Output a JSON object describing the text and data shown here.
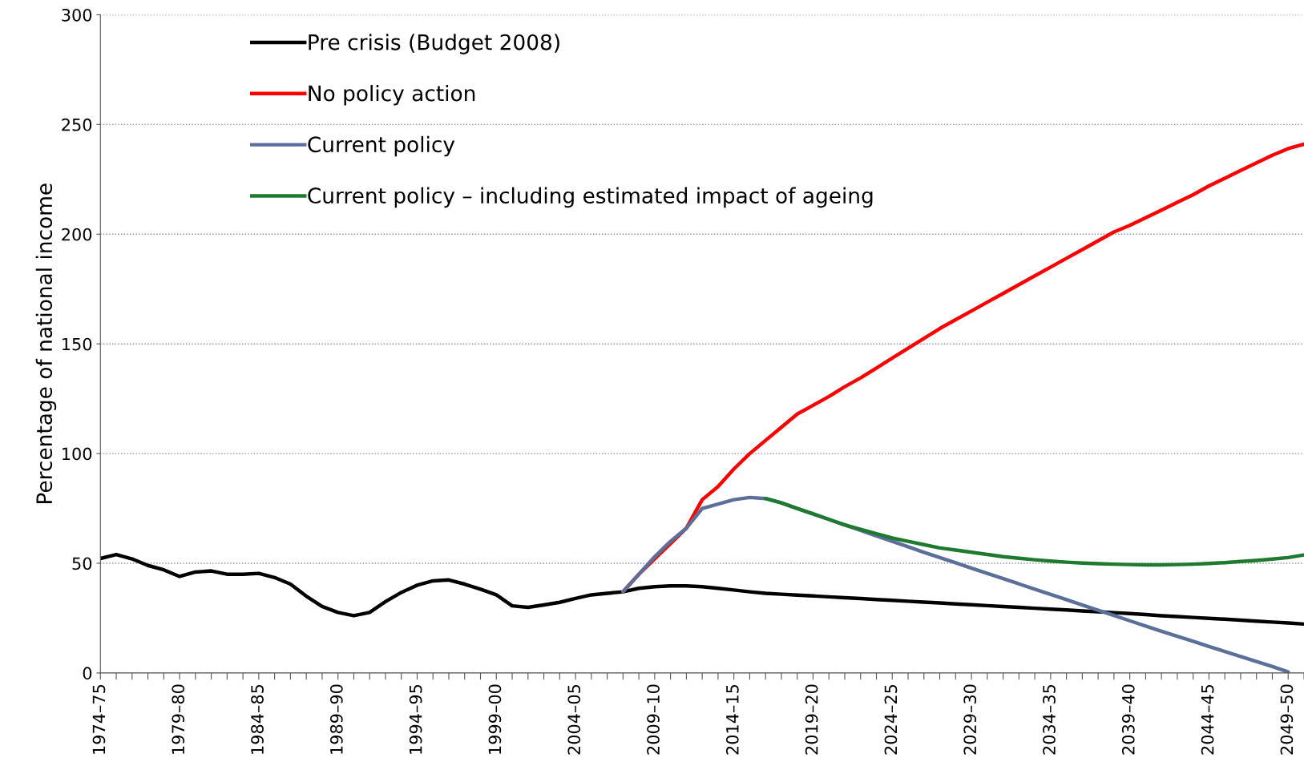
{
  "chart_data": {
    "type": "line",
    "ylabel": "Percentage of national income",
    "categories": [
      "1974–75",
      null,
      null,
      null,
      null,
      "1979–80",
      null,
      null,
      null,
      null,
      "1984–85",
      null,
      null,
      null,
      null,
      "1989–90",
      null,
      null,
      null,
      null,
      "1994–95",
      null,
      null,
      null,
      null,
      "1999–00",
      null,
      null,
      null,
      null,
      "2004–05",
      null,
      null,
      null,
      null,
      "2009–10",
      null,
      null,
      null,
      null,
      "2014–15",
      null,
      null,
      null,
      null,
      "2019–20",
      null,
      null,
      null,
      null,
      "2024–25",
      null,
      null,
      null,
      null,
      "2029–30",
      null,
      null,
      null,
      null,
      "2034–35",
      null,
      null,
      null,
      null,
      "2039–40",
      null,
      null,
      null,
      null,
      "2044–45",
      null,
      null,
      null,
      null,
      "2049–50",
      null
    ],
    "series": [
      {
        "name": "Pre crisis (Budget 2008)",
        "color": "#000000",
        "values": [
          52.2,
          54,
          52,
          49,
          47,
          44,
          46,
          46.5,
          45,
          45,
          45.4,
          43.5,
          40.5,
          35,
          30.3,
          27.6,
          26.1,
          27.6,
          32.5,
          36.7,
          40,
          42,
          42.4,
          40.5,
          38.2,
          35.6,
          30.6,
          29.9,
          31,
          32.2,
          34,
          35.6,
          36.3,
          37,
          38.6,
          39.3,
          39.7,
          39.7,
          39.3,
          38.6,
          37.8,
          37,
          36.3,
          35.9,
          35.5,
          35.1,
          34.7,
          34.3,
          33.9,
          33.5,
          33.1,
          32.7,
          32.3,
          31.9,
          31.5,
          31.1,
          30.7,
          30.3,
          29.9,
          29.5,
          29.1,
          28.7,
          28.3,
          27.9,
          27.5,
          27.1,
          26.6,
          26.1,
          25.7,
          25.3,
          24.9,
          24.5,
          24.1,
          23.6,
          23.2,
          22.8,
          22.3
        ]
      },
      {
        "name": "No policy action",
        "color": "#ff0000",
        "values": [
          null,
          null,
          null,
          null,
          null,
          null,
          null,
          null,
          null,
          null,
          null,
          null,
          null,
          null,
          null,
          null,
          null,
          null,
          null,
          null,
          null,
          null,
          null,
          null,
          null,
          null,
          null,
          null,
          null,
          null,
          null,
          null,
          null,
          37,
          45,
          52,
          59,
          66,
          79,
          85,
          93,
          100,
          106,
          112,
          118,
          122,
          126,
          130.5,
          134.5,
          139,
          143.5,
          148,
          152.5,
          157,
          161,
          165,
          169,
          173,
          177,
          181,
          185,
          189,
          193,
          197,
          201,
          204,
          207.5,
          211,
          214.5,
          218,
          222,
          225.5,
          229,
          232.5,
          236,
          239,
          241
        ]
      },
      {
        "name": "Current policy",
        "color": "#5b6f9a",
        "values": [
          null,
          null,
          null,
          null,
          null,
          null,
          null,
          null,
          null,
          null,
          null,
          null,
          null,
          null,
          null,
          null,
          null,
          null,
          null,
          null,
          null,
          null,
          null,
          null,
          null,
          null,
          null,
          null,
          null,
          null,
          null,
          null,
          null,
          37,
          45,
          53,
          60,
          66,
          75,
          77,
          79,
          80,
          79.5,
          77.5,
          75,
          72.5,
          70,
          67.5,
          65,
          62.5,
          60,
          57.5,
          55,
          52.6,
          50.2,
          47.8,
          45.4,
          43,
          40.6,
          38.2,
          35.8,
          33.4,
          31,
          28.6,
          26.2,
          23.8,
          21.4,
          19,
          16.7,
          14.4,
          12.1,
          9.8,
          7.5,
          5.2,
          2.9,
          0.5,
          null
        ]
      },
      {
        "name": "Current policy – including estimated impact of ageing",
        "color": "#1e7a2e",
        "values": [
          null,
          null,
          null,
          null,
          null,
          null,
          null,
          null,
          null,
          null,
          null,
          null,
          null,
          null,
          null,
          null,
          null,
          null,
          null,
          null,
          null,
          null,
          null,
          null,
          null,
          null,
          null,
          null,
          null,
          null,
          null,
          null,
          null,
          null,
          null,
          null,
          null,
          null,
          null,
          null,
          null,
          null,
          79.5,
          77.5,
          75,
          72.5,
          70,
          67.5,
          65.5,
          63.5,
          61.5,
          60,
          58.5,
          57,
          56,
          55,
          54,
          53,
          52.3,
          51.6,
          51,
          50.5,
          50.1,
          49.8,
          49.6,
          49.4,
          49.3,
          49.3,
          49.4,
          49.6,
          49.9,
          50.3,
          50.8,
          51.3,
          51.9,
          52.6,
          53.8
        ]
      }
    ],
    "ylim": [
      0,
      300
    ],
    "yticks": [
      0,
      50,
      100,
      150,
      200,
      250,
      300
    ],
    "grid": "y",
    "legend": "top left",
    "marker": "none",
    "line_style": "solid"
  }
}
